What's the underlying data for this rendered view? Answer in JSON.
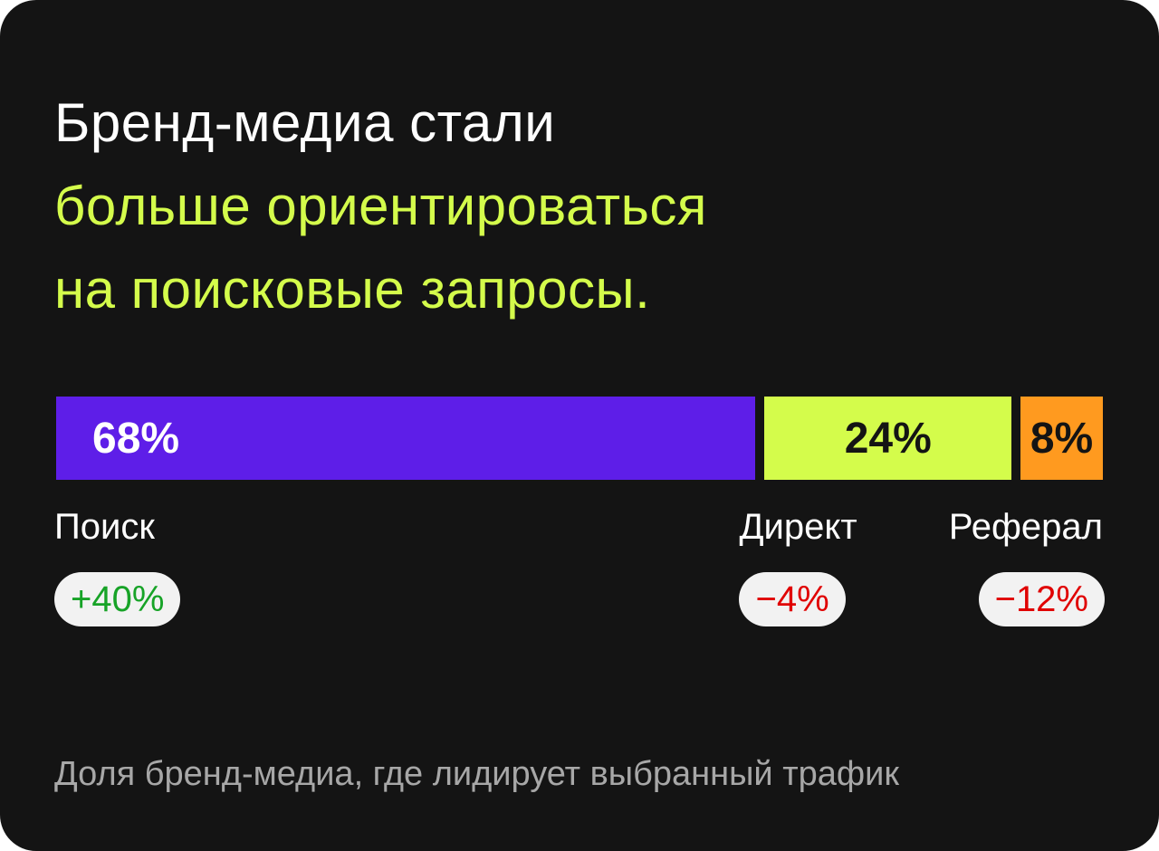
{
  "headline": {
    "line1": "Бренд-медиа стали",
    "line2": "больше ориентироваться",
    "line3": "на поисковые запросы.",
    "color_main": "#ffffff",
    "color_accent": "#d4fc4b"
  },
  "chart_data": {
    "type": "bar",
    "stacked": true,
    "orientation": "horizontal",
    "categories": [
      "Поиск",
      "Директ",
      "Реферал"
    ],
    "values": [
      68,
      24,
      8
    ],
    "value_labels": [
      "68%",
      "24%",
      "8%"
    ],
    "colors": [
      "#5e1ee8",
      "#d4fc4b",
      "#ff9a1f"
    ],
    "label_colors": [
      "#ffffff",
      "#141414",
      "#141414"
    ],
    "changes": [
      "+40%",
      "−4%",
      "−12%"
    ],
    "change_colors": [
      "#17a327",
      "#e00000",
      "#e00000"
    ],
    "xlim": [
      0,
      100
    ],
    "grid": false,
    "footnote": "Доля бренд-медиа, где лидирует выбранный трафик"
  }
}
